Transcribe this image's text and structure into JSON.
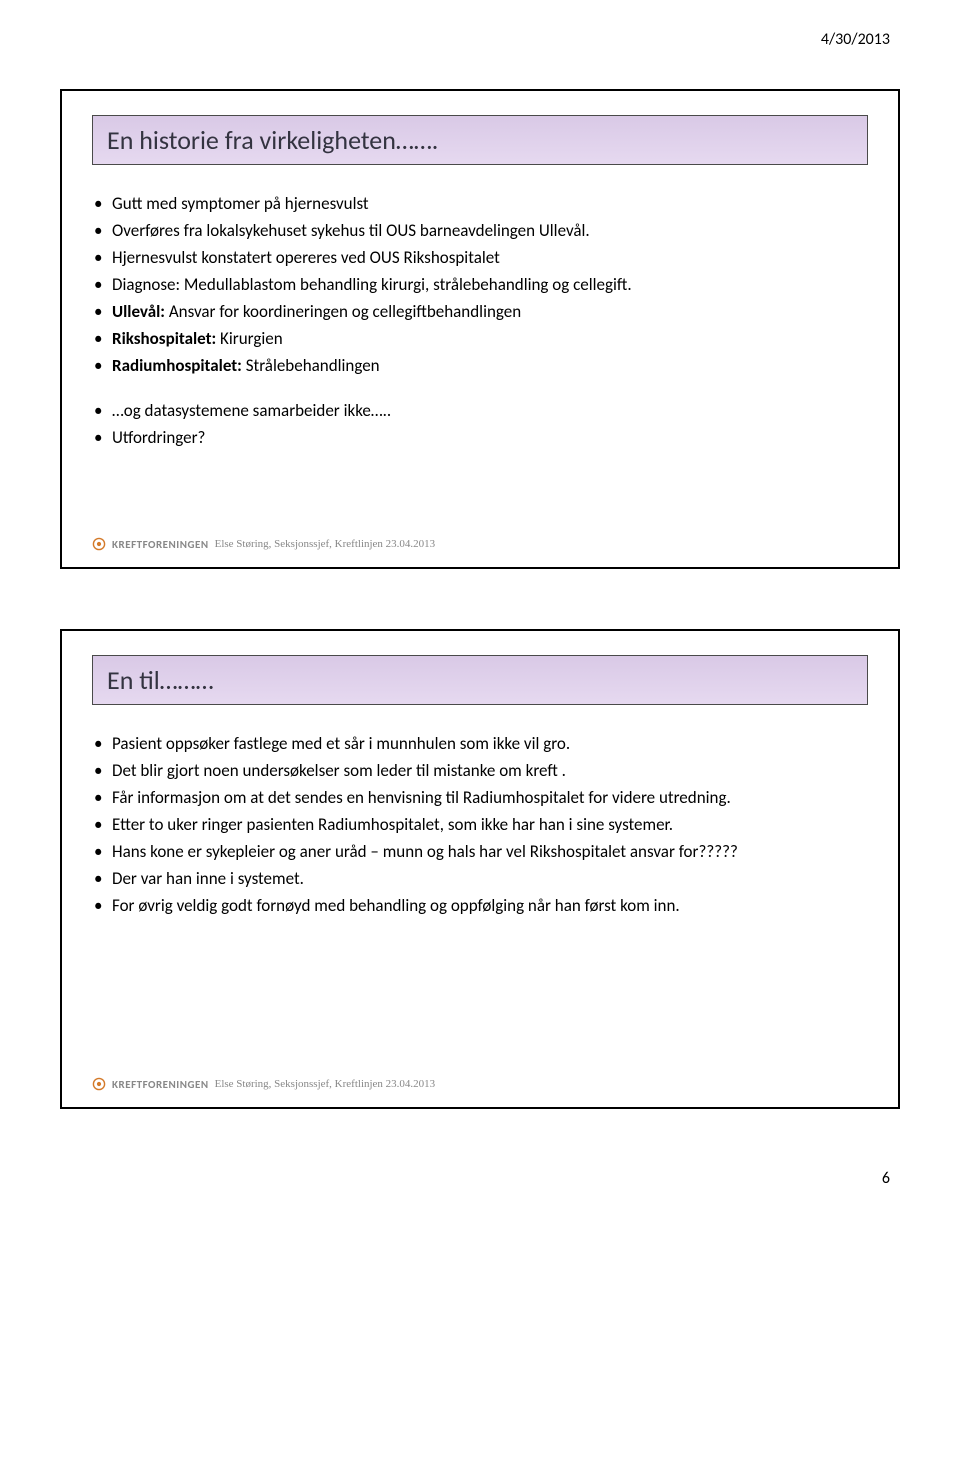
{
  "header_date": "4/30/2013",
  "page_number": "6",
  "footer": {
    "org": "KREFTFORENINGEN",
    "rest": "Else Støring, Seksjonssjef, Kreftlinjen 23.04.2013"
  },
  "slide1": {
    "title": "En historie fra virkeligheten…….",
    "group1": [
      "Gutt med symptomer på hjernesvulst",
      "Overføres fra lokalsykehuset sykehus til OUS barneavdelingen Ullevål.",
      "Hjernesvulst konstatert opereres ved OUS Rikshospitalet",
      "Diagnose: Medullablastom behandling kirurgi, strålebehandling og cellegift.",
      "Ullevål: Ansvar for koordineringen og cellegiftbehandlingen",
      "Rikshospitalet: Kirurgien",
      "Radiumhospitalet: Strålebehandlingen"
    ],
    "group1_html": [
      "Gutt med symptomer på hjernesvulst",
      "Overføres fra lokalsykehuset sykehus til OUS barneavdelingen Ullevål.",
      "Hjernesvulst konstatert opereres ved OUS Rikshospitalet",
      "Diagnose: Medullablastom behandling kirurgi, strålebehandling og cellegift.",
      "<b>Ullevål:</b> Ansvar for koordineringen og cellegiftbehandlingen",
      "<b>Rikshospitalet:</b> Kirurgien",
      "<b>Radiumhospitalet:</b> Strålebehandlingen"
    ],
    "group2": [
      "…og datasystemene samarbeider ikke…..",
      "Utfordringer?"
    ]
  },
  "slide2": {
    "title": "En til………",
    "group1": [
      "Pasient oppsøker fastlege med et sår i munnhulen som ikke vil gro.",
      "Det blir gjort noen undersøkelser som leder til mistanke om kreft .",
      "Får informasjon om at det sendes en henvisning til Radiumhospitalet for videre utredning.",
      "Etter to uker ringer pasienten Radiumhospitalet, som ikke har han i sine systemer.",
      "Hans kone er sykepleier og aner uråd – munn og hals har vel Rikshospitalet ansvar for?????",
      "Der var han inne i systemet.",
      "For øvrig veldig godt fornøyd med behandling og oppfølging når han først kom inn."
    ]
  }
}
